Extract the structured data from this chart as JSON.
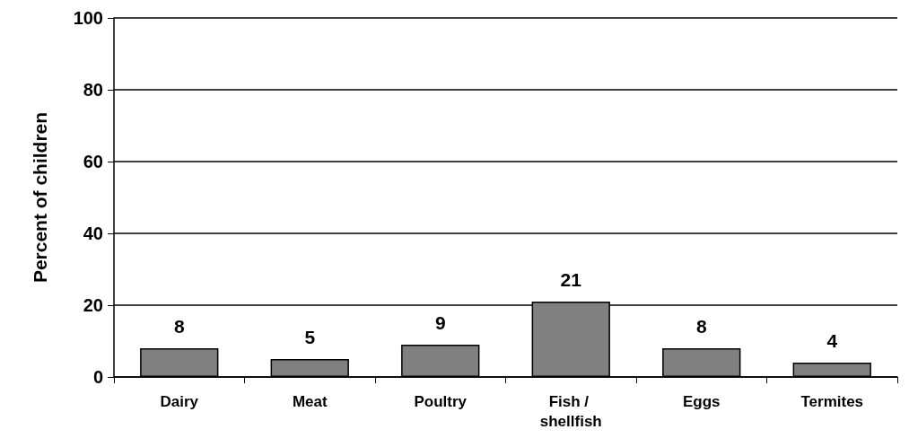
{
  "chart_data": {
    "type": "bar",
    "ylabel": "Percent of children",
    "categories": [
      "Dairy",
      "Meat",
      "Poultry",
      "Fish / shellfish",
      "Eggs",
      "Termites"
    ],
    "values": [
      8,
      5,
      9,
      21,
      8,
      4
    ],
    "color": "#808080",
    "ylim": [
      0,
      100
    ],
    "yticks": [
      0,
      20,
      40,
      60,
      80,
      100
    ],
    "grid": "y",
    "data_labels": true
  }
}
